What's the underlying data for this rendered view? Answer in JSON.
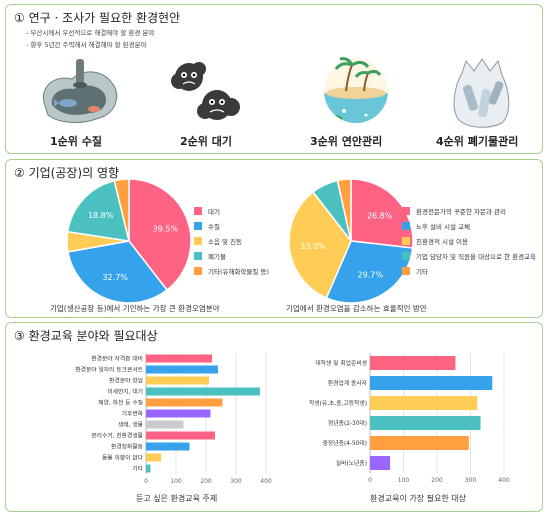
{
  "section1": {
    "title": "① 연구 · 조사가 필요한 환경현안",
    "bullets": [
      "- 부산시에서 우선적으로 해결해야 할 환경 분야",
      "- 향후 5년간 주력해서 해결해야 할 환경분야"
    ],
    "ranks": [
      "1순위 수질",
      "2순위 대기",
      "3순위 연안관리",
      "4순위 폐기물관리"
    ]
  },
  "section2": {
    "title": "② 기업(공장)의 영향"
  },
  "section3": {
    "title": "③ 환경교육 분야와 필요대상"
  },
  "colors": {
    "pink": "#ff6384",
    "blue": "#36a2eb",
    "yellow": "#ffcd56",
    "teal": "#4bc0c0",
    "orange": "#ff9f40",
    "purple": "#9966ff",
    "gray": "#c9cbcf",
    "green": "#a9d18e"
  },
  "chart_data": [
    {
      "type": "pie",
      "caption": "기업(생산공장 등)에서 기인하는 가장 큰 환경오염분야",
      "labels": [
        "대기",
        "수질",
        "소음 및 진동",
        "폐기물",
        "기타(유해화학물질 등)"
      ],
      "values": [
        39.5,
        32.7,
        5.2,
        18.8,
        3.8
      ],
      "value_labels": [
        "39.5%",
        "32.7%",
        "",
        "18.8%",
        ""
      ],
      "colors": [
        "#ff6384",
        "#36a2eb",
        "#ffcd56",
        "#4bc0c0",
        "#ff9f40"
      ],
      "legend": "right"
    },
    {
      "type": "pie",
      "caption": "기업에서 환경오염을 감소하는 효율적인 방안",
      "labels": [
        "환경전문가의 꾸준한 자문과 관리",
        "노후 설비 시설 교체",
        "친환경적 시설 이용",
        "기업 담당자 및 직원을 대상으로 한 환경교육",
        "기타"
      ],
      "values": [
        26.8,
        29.7,
        33.0,
        7.0,
        3.5
      ],
      "value_labels": [
        "26.8%",
        "29.7%",
        "33.0%",
        "",
        ""
      ],
      "colors": [
        "#ff6384",
        "#36a2eb",
        "#ffcd56",
        "#4bc0c0",
        "#ff9f40"
      ],
      "legend": "right"
    },
    {
      "type": "bar",
      "orientation": "horizontal",
      "caption": "듣고 싶은 환경교육 주제",
      "categories": [
        "환경분야 자격증 대비",
        "환경분야 일자리 토크콘서트",
        "환경분야 창업",
        "미세먼지, 대기",
        "해양, 하천 등 수질",
        "기후변화",
        "생태, 생물",
        "분리수거, 친환경생활",
        "환경정화활동",
        "들을 의향이 없다",
        "기타"
      ],
      "values": [
        220,
        240,
        210,
        380,
        255,
        215,
        125,
        230,
        145,
        50,
        15
      ],
      "colors": [
        "#ff6384",
        "#36a2eb",
        "#ffcd56",
        "#4bc0c0",
        "#ff9f40",
        "#9966ff",
        "#c9cbcf",
        "#ff6384",
        "#36a2eb",
        "#ffcd56",
        "#4bc0c0"
      ],
      "xlim": [
        0,
        400
      ],
      "xticks": [
        "0",
        "100",
        "200",
        "300",
        "400"
      ],
      "grid": true
    },
    {
      "type": "bar",
      "orientation": "horizontal",
      "caption": "환경교육이 가장 필요한 대상",
      "categories": [
        "대학생 및 취업준비생",
        "환경업계 종사자",
        "학생(유,초,중,고등학생)",
        "청년층(2-30대)",
        "중장년층(4-50대)",
        "실버(노년층)"
      ],
      "values": [
        255,
        365,
        320,
        330,
        295,
        60
      ],
      "colors": [
        "#ff6384",
        "#36a2eb",
        "#ffcd56",
        "#4bc0c0",
        "#ff9f40",
        "#9966ff"
      ],
      "xlim": [
        0,
        400
      ],
      "xticks": [
        "0",
        "100",
        "200",
        "300",
        "400"
      ],
      "grid": true
    }
  ]
}
